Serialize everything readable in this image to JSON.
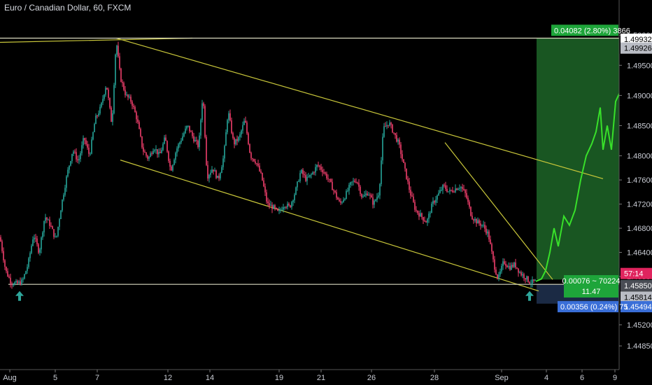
{
  "header": {
    "title": "Euro / Canadian Dollar, 60, FXCM"
  },
  "colors": {
    "up": "#26a69a",
    "down": "#ef3e6b",
    "projection": "#38e02a",
    "trendline": "#c8c63a",
    "target_zone": "#1f6b2a",
    "stop_zone": "#1b2a44",
    "current_price_tag": "#e0245e"
  },
  "chart_data": {
    "type": "candlestick",
    "title": "Euro / Canadian Dollar, 60, FXCM",
    "y_ticks": [
      "1.50000",
      "1.49500",
      "1.49000",
      "1.48500",
      "1.48000",
      "1.47600",
      "1.47200",
      "1.46800",
      "1.46400",
      "1.46000",
      "1.45200",
      "1.44850"
    ],
    "x_ticks": [
      "Aug",
      "5",
      "7",
      "12",
      "14",
      "19",
      "21",
      "26",
      "28",
      "Sep",
      "4",
      "6",
      "9"
    ],
    "ylim": [
      1.4455,
      1.5035
    ],
    "price_path": [
      [
        0,
        1.4665
      ],
      [
        8,
        1.461
      ],
      [
        16,
        1.459
      ],
      [
        24,
        1.4588
      ],
      [
        32,
        1.4592
      ],
      [
        40,
        1.462
      ],
      [
        48,
        1.467
      ],
      [
        56,
        1.464
      ],
      [
        64,
        1.47
      ],
      [
        72,
        1.4685
      ],
      [
        80,
        1.466
      ],
      [
        88,
        1.472
      ],
      [
        96,
        1.477
      ],
      [
        104,
        1.481
      ],
      [
        112,
        1.479
      ],
      [
        120,
        1.483
      ],
      [
        128,
        1.48
      ],
      [
        136,
        1.486
      ],
      [
        144,
        1.488
      ],
      [
        152,
        1.492
      ],
      [
        160,
        1.485
      ],
      [
        166,
        1.4993
      ],
      [
        172,
        1.493
      ],
      [
        180,
        1.49
      ],
      [
        188,
        1.489
      ],
      [
        196,
        1.486
      ],
      [
        204,
        1.481
      ],
      [
        212,
        1.4795
      ],
      [
        220,
        1.4815
      ],
      [
        228,
        1.48
      ],
      [
        236,
        1.483
      ],
      [
        244,
        1.4775
      ],
      [
        252,
        1.481
      ],
      [
        260,
        1.483
      ],
      [
        268,
        1.485
      ],
      [
        276,
        1.483
      ],
      [
        284,
        1.4815
      ],
      [
        290,
        1.4905
      ],
      [
        296,
        1.4765
      ],
      [
        304,
        1.478
      ],
      [
        312,
        1.476
      ],
      [
        320,
        1.48
      ],
      [
        326,
        1.4875
      ],
      [
        334,
        1.482
      ],
      [
        342,
        1.483
      ],
      [
        350,
        1.486
      ],
      [
        358,
        1.48
      ],
      [
        366,
        1.479
      ],
      [
        374,
        1.4765
      ],
      [
        382,
        1.472
      ],
      [
        390,
        1.4715
      ],
      [
        398,
        1.4705
      ],
      [
        406,
        1.472
      ],
      [
        414,
        1.4715
      ],
      [
        422,
        1.474
      ],
      [
        430,
        1.4775
      ],
      [
        438,
        1.476
      ],
      [
        446,
        1.477
      ],
      [
        454,
        1.4785
      ],
      [
        462,
        1.4775
      ],
      [
        470,
        1.476
      ],
      [
        478,
        1.474
      ],
      [
        486,
        1.472
      ],
      [
        494,
        1.4735
      ],
      [
        502,
        1.4755
      ],
      [
        510,
        1.476
      ],
      [
        518,
        1.473
      ],
      [
        526,
        1.474
      ],
      [
        534,
        1.472
      ],
      [
        542,
        1.474
      ],
      [
        548,
        1.4845
      ],
      [
        556,
        1.4855
      ],
      [
        562,
        1.484
      ],
      [
        570,
        1.482
      ],
      [
        578,
        1.478
      ],
      [
        586,
        1.474
      ],
      [
        594,
        1.471
      ],
      [
        602,
        1.47
      ],
      [
        610,
        1.469
      ],
      [
        618,
        1.472
      ],
      [
        626,
        1.4735
      ],
      [
        634,
        1.475
      ],
      [
        642,
        1.474
      ],
      [
        650,
        1.4745
      ],
      [
        658,
        1.475
      ],
      [
        666,
        1.4735
      ],
      [
        674,
        1.47
      ],
      [
        682,
        1.469
      ],
      [
        690,
        1.4685
      ],
      [
        698,
        1.467
      ],
      [
        706,
        1.462
      ],
      [
        712,
        1.4595
      ],
      [
        720,
        1.4625
      ],
      [
        728,
        1.4615
      ],
      [
        736,
        1.462
      ],
      [
        744,
        1.4605
      ],
      [
        750,
        1.46
      ],
      [
        758,
        1.459
      ],
      [
        766,
        1.4592
      ]
    ],
    "projection_path": [
      [
        766,
        1.4592
      ],
      [
        774,
        1.4596
      ],
      [
        780,
        1.461
      ],
      [
        786,
        1.464
      ],
      [
        792,
        1.468
      ],
      [
        798,
        1.465
      ],
      [
        806,
        1.47
      ],
      [
        814,
        1.4685
      ],
      [
        822,
        1.471
      ],
      [
        830,
        1.476
      ],
      [
        838,
        1.48
      ],
      [
        846,
        1.482
      ],
      [
        852,
        1.484
      ],
      [
        858,
        1.488
      ],
      [
        862,
        1.481
      ],
      [
        868,
        1.485
      ],
      [
        874,
        1.481
      ],
      [
        880,
        1.489
      ],
      [
        886,
        1.4905
      ]
    ],
    "trendlines": [
      {
        "from": [
          0,
          1.4988
        ],
        "to": [
          275,
          1.4995
        ]
      },
      {
        "from": [
          166,
          1.4995
        ],
        "to": [
          862,
          1.4762
        ]
      },
      {
        "from": [
          172,
          1.4793
        ],
        "to": [
          770,
          1.4576
        ]
      },
      {
        "from": [
          636,
          1.4822
        ],
        "to": [
          790,
          1.4595
        ]
      },
      {
        "from": [
          12,
          1.4587
        ],
        "to": [
          885,
          1.4587
        ]
      },
      {
        "from": [
          0,
          1.4995
        ],
        "to": [
          885,
          1.4995
        ]
      }
    ],
    "target_zone": {
      "x0": 767,
      "x1": 885,
      "y_top": 1.4995,
      "y_bottom": 1.4595
    },
    "stop_zone": {
      "x0": 767,
      "x1": 885,
      "y_top": 1.4587,
      "y_bottom": 1.4555
    },
    "arrows": [
      [
        28,
        1.4576
      ],
      [
        757,
        1.4576
      ]
    ],
    "price_tags": [
      {
        "text": "1.49932",
        "price": 1.49932,
        "bg": "#ffffff",
        "fg": "#000000"
      },
      {
        "text": "1.49926",
        "price": 1.49785,
        "bg": "#b9bcc4",
        "fg": "#000000"
      },
      {
        "text": "57:14",
        "price": 1.4605,
        "bg": "#e0245e",
        "fg": "#ffffff"
      },
      {
        "text": "1.45850",
        "price": 1.4585,
        "bg": "#4a4d55",
        "fg": "#ffffff"
      },
      {
        "text": "1.45814",
        "price": 1.4566,
        "bg": "#b9bcc4",
        "fg": "#000000"
      },
      {
        "text": "1.45494",
        "price": 1.455,
        "bg": "#3a6fd8",
        "fg": "#ffffff"
      }
    ],
    "info_boxes": [
      {
        "lines": [
          "0.04082 (2.80%) 3866"
        ],
        "bg": "#1ea53a",
        "fg": "#ffffff",
        "x": 788,
        "price": 1.5008
      },
      {
        "lines": [
          "0.00076 ~ 70224",
          "11.47"
        ],
        "bg": "#1ea53a",
        "fg": "#ffffff",
        "x": 806,
        "price": 1.4593
      },
      {
        "lines": [
          "0.00356 (0.24%) 75"
        ],
        "bg": "#3a6fd8",
        "fg": "#ffffff",
        "x": 797,
        "price": 1.455
      }
    ]
  }
}
